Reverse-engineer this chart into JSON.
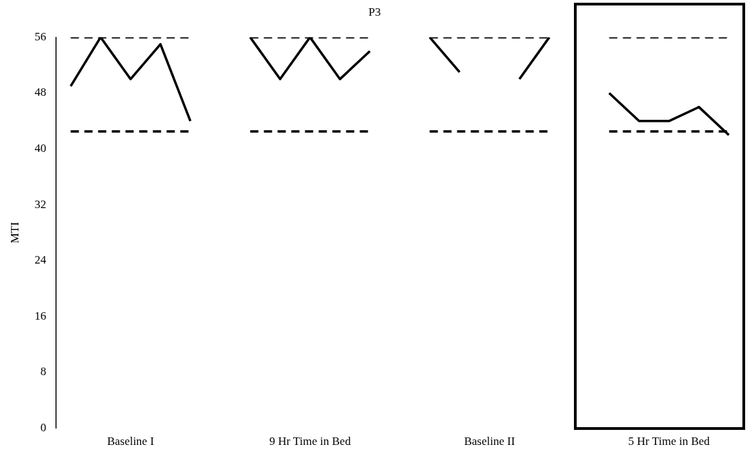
{
  "chart_data": {
    "type": "line",
    "title": "P3",
    "ylabel": "MTI",
    "categories": [
      null,
      null,
      "Baseline I",
      null,
      null,
      null,
      null,
      null,
      "9 Hr Time in Bed",
      null,
      null,
      null,
      null,
      null,
      "Baseline II",
      null,
      null,
      null,
      null,
      null,
      "5 Hr Time in Bed",
      null,
      null
    ],
    "ylim": [
      0,
      56
    ],
    "yticks": [
      0,
      8,
      16,
      24,
      32,
      40,
      48,
      56
    ],
    "series": [
      {
        "color": "#000000",
        "line_style": "solid",
        "values": [
          49,
          56,
          50,
          55,
          44,
          null,
          56,
          50,
          56,
          50,
          54,
          null,
          56,
          51,
          null,
          50,
          56,
          null,
          48,
          44,
          44,
          46,
          42
        ]
      },
      {
        "color": "#000000",
        "line_style": "dashed",
        "values": [
          56,
          56,
          56,
          56,
          56,
          null,
          56,
          56,
          56,
          56,
          56,
          null,
          56,
          56,
          56,
          56,
          56,
          null,
          56,
          56,
          56,
          56,
          56
        ]
      },
      {
        "color": "#000000",
        "line_style": "dashed",
        "values": [
          42.5,
          42.5,
          42.5,
          42.5,
          42.5,
          null,
          42.5,
          42.5,
          42.5,
          42.5,
          42.5,
          null,
          42.5,
          42.5,
          42.5,
          42.5,
          42.5,
          null,
          42.5,
          42.5,
          42.5,
          42.5,
          42.5
        ]
      }
    ],
    "marker": "none",
    "grid": false,
    "legend": false
  }
}
